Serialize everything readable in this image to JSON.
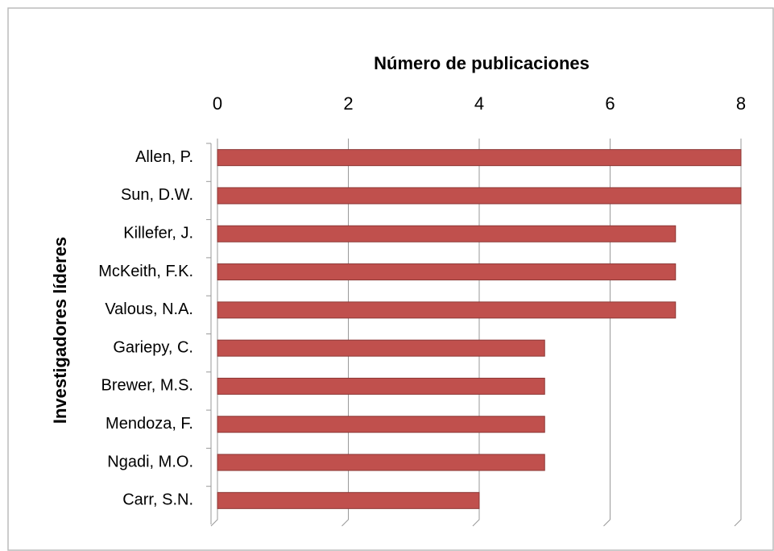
{
  "chart_data": {
    "type": "bar",
    "orientation": "horizontal",
    "title": "Número de publicaciones",
    "y_label": "Investigadores líderes",
    "categories": [
      "Allen, P.",
      "Sun, D.W.",
      "Killefer, J.",
      "McKeith, F.K.",
      "Valous, N.A.",
      "Gariepy, C.",
      "Brewer, M.S.",
      "Mendoza, F.",
      "Ngadi, M.O.",
      "Carr, S.N."
    ],
    "values": [
      8,
      8,
      7,
      7,
      7,
      5,
      5,
      5,
      5,
      4
    ],
    "color": "#c0504d",
    "xlim": [
      0,
      8
    ],
    "xticks": [
      0,
      2,
      4,
      6,
      8
    ],
    "grid": true
  }
}
